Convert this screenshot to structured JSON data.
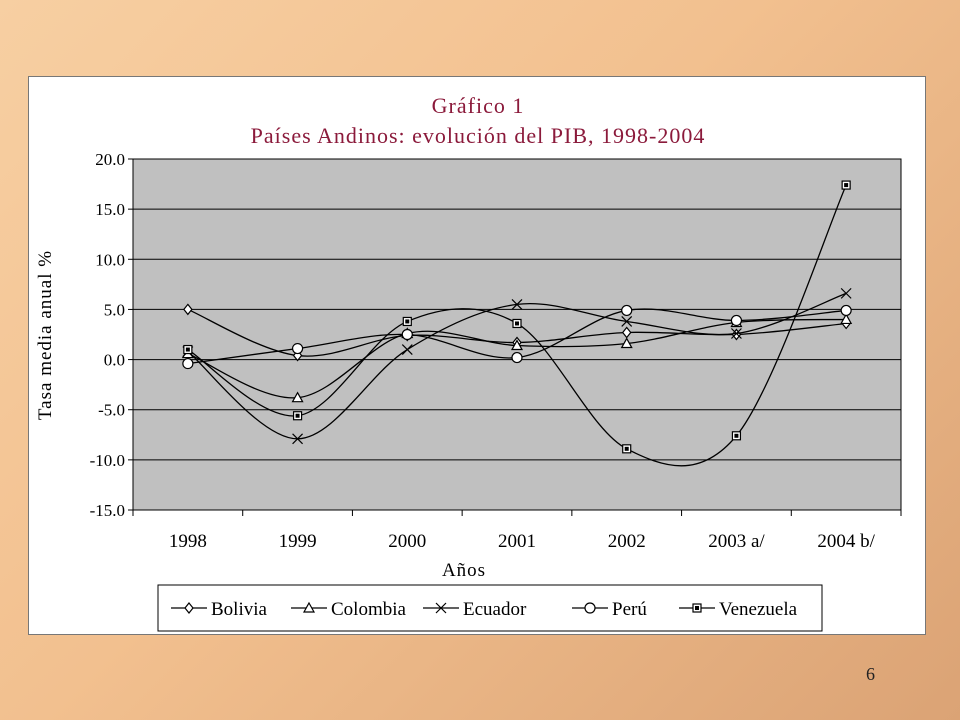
{
  "page_number": "6",
  "chart_data": {
    "type": "line",
    "title_line1": "Gráfico 1",
    "title_line2": "Países Andinos: evolución del PIB, 1998-2004",
    "xlabel": "Años",
    "ylabel": "Tasa media anual %",
    "categories": [
      "1998",
      "1999",
      "2000",
      "2001",
      "2002",
      "2003 a/",
      "2004 b/"
    ],
    "y_ticks": [
      "20.0",
      "15.0",
      "10.0",
      "5.0",
      "0.0",
      "-5.0",
      "-10.0",
      "-15.0"
    ],
    "ylim": [
      -15,
      20
    ],
    "grid": true,
    "legend_position": "bottom",
    "plot_background": "#c0c0c0",
    "title_color": "#8b1a3b",
    "series": [
      {
        "name": "Bolivia",
        "marker": "diamond",
        "values": [
          5.0,
          0.4,
          2.4,
          1.7,
          2.7,
          2.5,
          3.6
        ]
      },
      {
        "name": "Colombia",
        "marker": "triangle",
        "values": [
          0.6,
          -3.8,
          2.6,
          1.4,
          1.6,
          3.7,
          4.0
        ]
      },
      {
        "name": "Ecuador",
        "marker": "x",
        "values": [
          0.8,
          -7.9,
          1.0,
          5.5,
          3.8,
          2.6,
          6.6
        ]
      },
      {
        "name": "Perú",
        "marker": "circle",
        "values": [
          -0.4,
          1.1,
          2.5,
          0.2,
          4.9,
          3.9,
          4.9
        ]
      },
      {
        "name": "Venezuela",
        "marker": "square",
        "values": [
          1.0,
          -5.6,
          3.8,
          3.6,
          -8.9,
          -7.6,
          17.4
        ]
      }
    ]
  }
}
